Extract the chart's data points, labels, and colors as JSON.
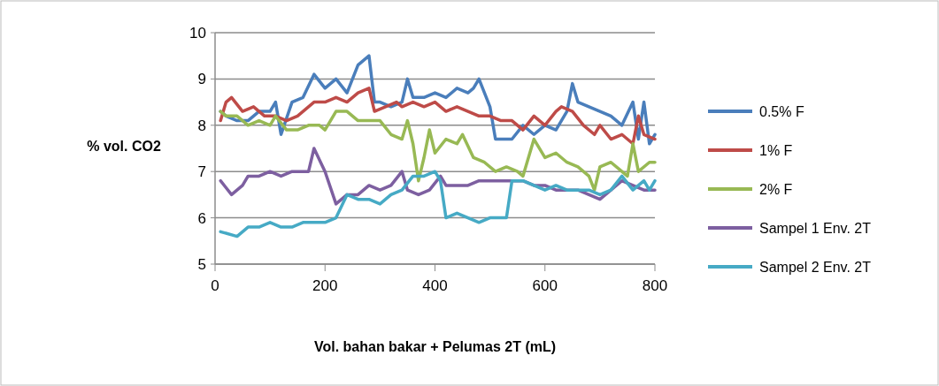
{
  "chart_data": {
    "type": "line",
    "xlabel": "Vol. bahan bakar + Pelumas 2T (mL)",
    "ylabel": "% vol. CO2",
    "xlim": [
      0,
      800
    ],
    "xticks": [
      0,
      200,
      400,
      600,
      800
    ],
    "ylim": [
      5,
      10
    ],
    "yticks": [
      5,
      6,
      7,
      8,
      9,
      10
    ],
    "grid": "y",
    "legend": "right",
    "marker": "none",
    "line_style": "solid",
    "series": [
      {
        "name": "0.5% F",
        "color": "#4a7ebb",
        "x": [
          10,
          20,
          40,
          60,
          80,
          100,
          110,
          120,
          140,
          160,
          180,
          200,
          220,
          240,
          260,
          280,
          290,
          300,
          320,
          340,
          350,
          360,
          380,
          400,
          420,
          440,
          460,
          470,
          480,
          500,
          510,
          540,
          560,
          580,
          600,
          620,
          640,
          650,
          660,
          680,
          700,
          720,
          740,
          760,
          770,
          780,
          790,
          800
        ],
        "values": [
          8.3,
          8.2,
          8.1,
          8.1,
          8.3,
          8.3,
          8.5,
          7.8,
          8.5,
          8.6,
          9.1,
          8.8,
          9.0,
          8.7,
          9.3,
          9.5,
          8.5,
          8.5,
          8.4,
          8.5,
          9.0,
          8.6,
          8.6,
          8.7,
          8.6,
          8.8,
          8.7,
          8.8,
          9.0,
          8.4,
          7.7,
          7.7,
          8.0,
          7.8,
          8.0,
          7.9,
          8.3,
          8.9,
          8.5,
          8.4,
          8.3,
          8.2,
          8.0,
          8.5,
          7.7,
          8.5,
          7.6,
          7.8
        ]
      },
      {
        "name": "1% F",
        "color": "#be4b48",
        "x": [
          10,
          20,
          30,
          50,
          70,
          90,
          110,
          130,
          150,
          170,
          180,
          200,
          220,
          240,
          260,
          280,
          290,
          310,
          330,
          340,
          360,
          380,
          400,
          420,
          440,
          460,
          480,
          500,
          520,
          540,
          560,
          580,
          600,
          620,
          630,
          650,
          670,
          690,
          700,
          720,
          740,
          760,
          770,
          780,
          800
        ],
        "values": [
          8.1,
          8.5,
          8.6,
          8.3,
          8.4,
          8.2,
          8.2,
          8.1,
          8.2,
          8.4,
          8.5,
          8.5,
          8.6,
          8.5,
          8.7,
          8.8,
          8.3,
          8.4,
          8.5,
          8.4,
          8.5,
          8.4,
          8.5,
          8.3,
          8.4,
          8.3,
          8.2,
          8.2,
          8.1,
          8.1,
          7.9,
          8.2,
          8.0,
          8.3,
          8.4,
          8.3,
          8.0,
          7.8,
          8.0,
          7.7,
          7.8,
          7.6,
          8.2,
          7.8,
          7.7
        ]
      },
      {
        "name": "2% F",
        "color": "#98b954",
        "x": [
          10,
          20,
          40,
          60,
          80,
          100,
          110,
          130,
          150,
          170,
          190,
          200,
          220,
          240,
          260,
          280,
          300,
          320,
          340,
          350,
          360,
          370,
          380,
          390,
          400,
          420,
          440,
          450,
          470,
          490,
          510,
          530,
          550,
          560,
          580,
          600,
          620,
          640,
          660,
          680,
          690,
          700,
          720,
          740,
          750,
          760,
          770,
          790,
          800
        ],
        "values": [
          8.3,
          8.2,
          8.2,
          8.0,
          8.1,
          8.0,
          8.2,
          7.9,
          7.9,
          8.0,
          8.0,
          7.9,
          8.3,
          8.3,
          8.1,
          8.1,
          8.1,
          7.8,
          7.7,
          8.1,
          7.6,
          6.8,
          7.3,
          7.9,
          7.4,
          7.7,
          7.6,
          7.8,
          7.3,
          7.2,
          7.0,
          7.1,
          7.0,
          6.9,
          7.7,
          7.3,
          7.4,
          7.2,
          7.1,
          6.9,
          6.6,
          7.1,
          7.2,
          7.0,
          6.9,
          7.6,
          7.0,
          7.2,
          7.2
        ]
      },
      {
        "name": "Sampel 1 Env. 2T",
        "color": "#7d5fa0",
        "x": [
          10,
          30,
          50,
          60,
          80,
          100,
          120,
          140,
          160,
          170,
          180,
          200,
          220,
          240,
          260,
          280,
          300,
          320,
          340,
          350,
          370,
          390,
          410,
          420,
          440,
          460,
          480,
          500,
          520,
          540,
          560,
          580,
          600,
          620,
          640,
          660,
          680,
          700,
          720,
          740,
          760,
          780,
          800
        ],
        "values": [
          6.8,
          6.5,
          6.7,
          6.9,
          6.9,
          7.0,
          6.9,
          7.0,
          7.0,
          7.0,
          7.5,
          7.0,
          6.3,
          6.5,
          6.5,
          6.7,
          6.6,
          6.7,
          7.0,
          6.6,
          6.5,
          6.6,
          6.9,
          6.7,
          6.7,
          6.7,
          6.8,
          6.8,
          6.8,
          6.8,
          6.8,
          6.7,
          6.7,
          6.6,
          6.6,
          6.6,
          6.5,
          6.4,
          6.6,
          6.8,
          6.7,
          6.6,
          6.6
        ]
      },
      {
        "name": "Sampel 2 Env. 2T",
        "color": "#46aac5",
        "x": [
          10,
          40,
          60,
          80,
          100,
          120,
          140,
          160,
          180,
          200,
          220,
          240,
          260,
          280,
          300,
          320,
          340,
          360,
          380,
          400,
          410,
          420,
          440,
          460,
          480,
          500,
          520,
          530,
          540,
          560,
          580,
          600,
          620,
          640,
          660,
          680,
          700,
          720,
          740,
          760,
          780,
          790,
          800
        ],
        "values": [
          5.7,
          5.6,
          5.8,
          5.8,
          5.9,
          5.8,
          5.8,
          5.9,
          5.9,
          5.9,
          6.0,
          6.5,
          6.4,
          6.4,
          6.3,
          6.5,
          6.6,
          6.9,
          6.9,
          7.0,
          6.8,
          6.0,
          6.1,
          6.0,
          5.9,
          6.0,
          6.0,
          6.0,
          6.8,
          6.8,
          6.7,
          6.6,
          6.7,
          6.6,
          6.6,
          6.6,
          6.5,
          6.6,
          6.9,
          6.6,
          6.8,
          6.6,
          6.8
        ]
      }
    ]
  }
}
